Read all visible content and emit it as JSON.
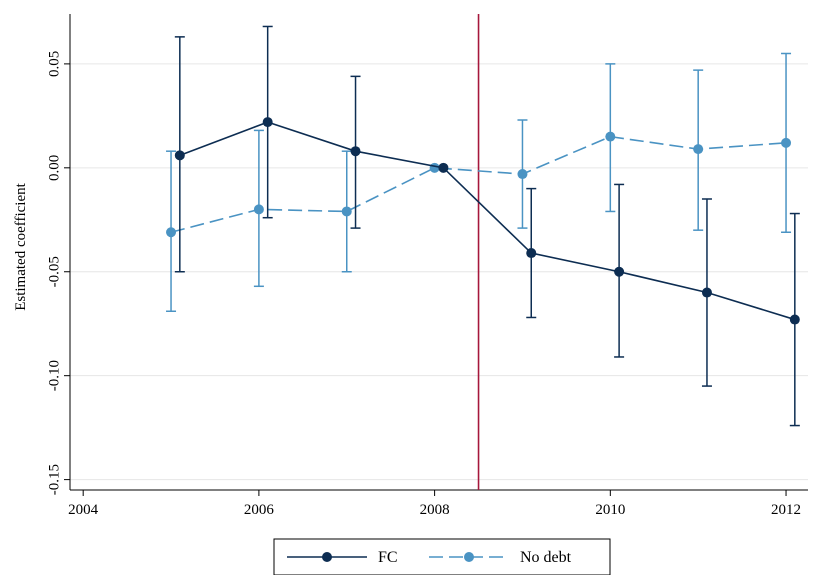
{
  "chart_data": {
    "type": "line",
    "title": "",
    "xlabel": "",
    "ylabel": "Estimated coefficient",
    "xlim": [
      2003.85,
      2012.25
    ],
    "ylim": [
      -0.155,
      0.074
    ],
    "xticks": [
      2004,
      2006,
      2008,
      2010,
      2012
    ],
    "xtick_labels": [
      "2004",
      "2006",
      "2008",
      "2010",
      "2012"
    ],
    "yticks": [
      0.05,
      0.0,
      -0.05,
      -0.1,
      -0.15
    ],
    "ytick_labels": [
      "0.05",
      "0.00",
      "-0.05",
      "-0.10",
      "-0.15"
    ],
    "grid": true,
    "vertical_reference_line": {
      "x": 2008.5,
      "color": "#a6173c"
    },
    "legend_position": "bottom-center",
    "series": [
      {
        "name": "FC",
        "color": "#0d2d52",
        "line_style": "solid",
        "x": [
          2005.1,
          2006.1,
          2007.1,
          2008.1,
          2009.1,
          2010.1,
          2011.1,
          2012.1
        ],
        "y": [
          0.006,
          0.022,
          0.008,
          0.0,
          -0.041,
          -0.05,
          -0.06,
          -0.073
        ],
        "ci_low": [
          -0.05,
          -0.024,
          -0.029,
          0.0,
          -0.072,
          -0.091,
          -0.105,
          -0.124
        ],
        "ci_high": [
          0.063,
          0.068,
          0.044,
          0.0,
          -0.01,
          -0.008,
          -0.015,
          -0.022
        ]
      },
      {
        "name": "No debt",
        "color": "#4a93c3",
        "line_style": "dashed",
        "x": [
          2005.0,
          2006.0,
          2007.0,
          2008.0,
          2009.0,
          2010.0,
          2011.0,
          2012.0
        ],
        "y": [
          -0.031,
          -0.02,
          -0.021,
          0.0,
          -0.003,
          0.015,
          0.009,
          0.012
        ],
        "ci_low": [
          -0.069,
          -0.057,
          -0.05,
          0.0,
          -0.029,
          -0.021,
          -0.03,
          -0.031
        ],
        "ci_high": [
          0.008,
          0.018,
          0.008,
          0.0,
          0.023,
          0.05,
          0.047,
          0.055
        ]
      }
    ]
  }
}
